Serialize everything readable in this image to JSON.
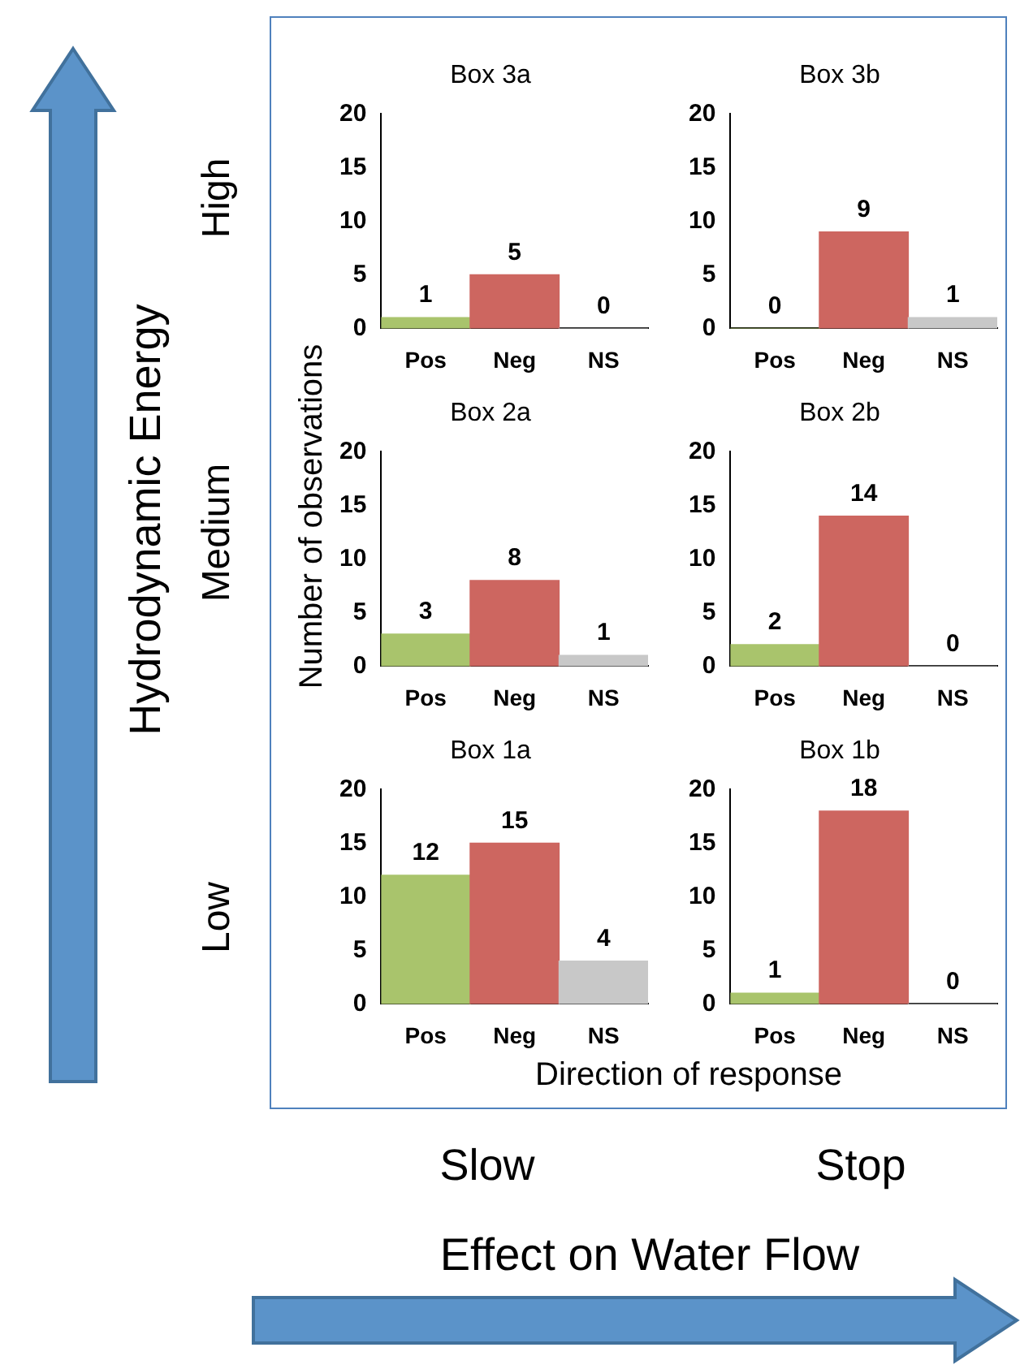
{
  "chart_data": [
    {
      "type": "bar",
      "title": "Box 3a",
      "categories": [
        "Pos",
        "Neg",
        "NS"
      ],
      "values": [
        1,
        5,
        0
      ],
      "colors": [
        "#a9c46c",
        "#cd6660",
        "#c8c8c8"
      ],
      "ylim": [
        0,
        20
      ],
      "yticks": [
        0,
        5,
        10,
        15,
        20
      ],
      "data_labels": true
    },
    {
      "type": "bar",
      "title": "Box 3b",
      "categories": [
        "Pos",
        "Neg",
        "NS"
      ],
      "values": [
        0,
        9,
        1
      ],
      "colors": [
        "#a9c46c",
        "#cd6660",
        "#c8c8c8"
      ],
      "ylim": [
        0,
        20
      ],
      "yticks": [
        0,
        5,
        10,
        15,
        20
      ],
      "data_labels": true
    },
    {
      "type": "bar",
      "title": "Box 2a",
      "categories": [
        "Pos",
        "Neg",
        "NS"
      ],
      "values": [
        3,
        8,
        1
      ],
      "colors": [
        "#a9c46c",
        "#cd6660",
        "#c8c8c8"
      ],
      "ylim": [
        0,
        20
      ],
      "yticks": [
        0,
        5,
        10,
        15,
        20
      ],
      "data_labels": true
    },
    {
      "type": "bar",
      "title": "Box 2b",
      "categories": [
        "Pos",
        "Neg",
        "NS"
      ],
      "values": [
        2,
        14,
        0
      ],
      "colors": [
        "#a9c46c",
        "#cd6660",
        "#c8c8c8"
      ],
      "ylim": [
        0,
        20
      ],
      "yticks": [
        0,
        5,
        10,
        15,
        20
      ],
      "data_labels": true
    },
    {
      "type": "bar",
      "title": "Box 1a",
      "categories": [
        "Pos",
        "Neg",
        "NS"
      ],
      "values": [
        12,
        15,
        4
      ],
      "colors": [
        "#a9c46c",
        "#cd6660",
        "#c8c8c8"
      ],
      "ylim": [
        0,
        20
      ],
      "yticks": [
        0,
        5,
        10,
        15,
        20
      ],
      "data_labels": true
    },
    {
      "type": "bar",
      "title": "Box 1b",
      "categories": [
        "Pos",
        "Neg",
        "NS"
      ],
      "values": [
        1,
        18,
        0
      ],
      "colors": [
        "#a9c46c",
        "#cd6660",
        "#c8c8c8"
      ],
      "ylim": [
        0,
        20
      ],
      "yticks": [
        0,
        5,
        10,
        15,
        20
      ],
      "data_labels": true
    },
    {
      "type": "other",
      "annotations": [
        "Number of observations",
        "Direction of response",
        "Hydrodynamic Energy",
        "High",
        "Medium",
        "Low",
        "Slow",
        "Stop",
        "Effect on Water Flow"
      ]
    }
  ]
}
